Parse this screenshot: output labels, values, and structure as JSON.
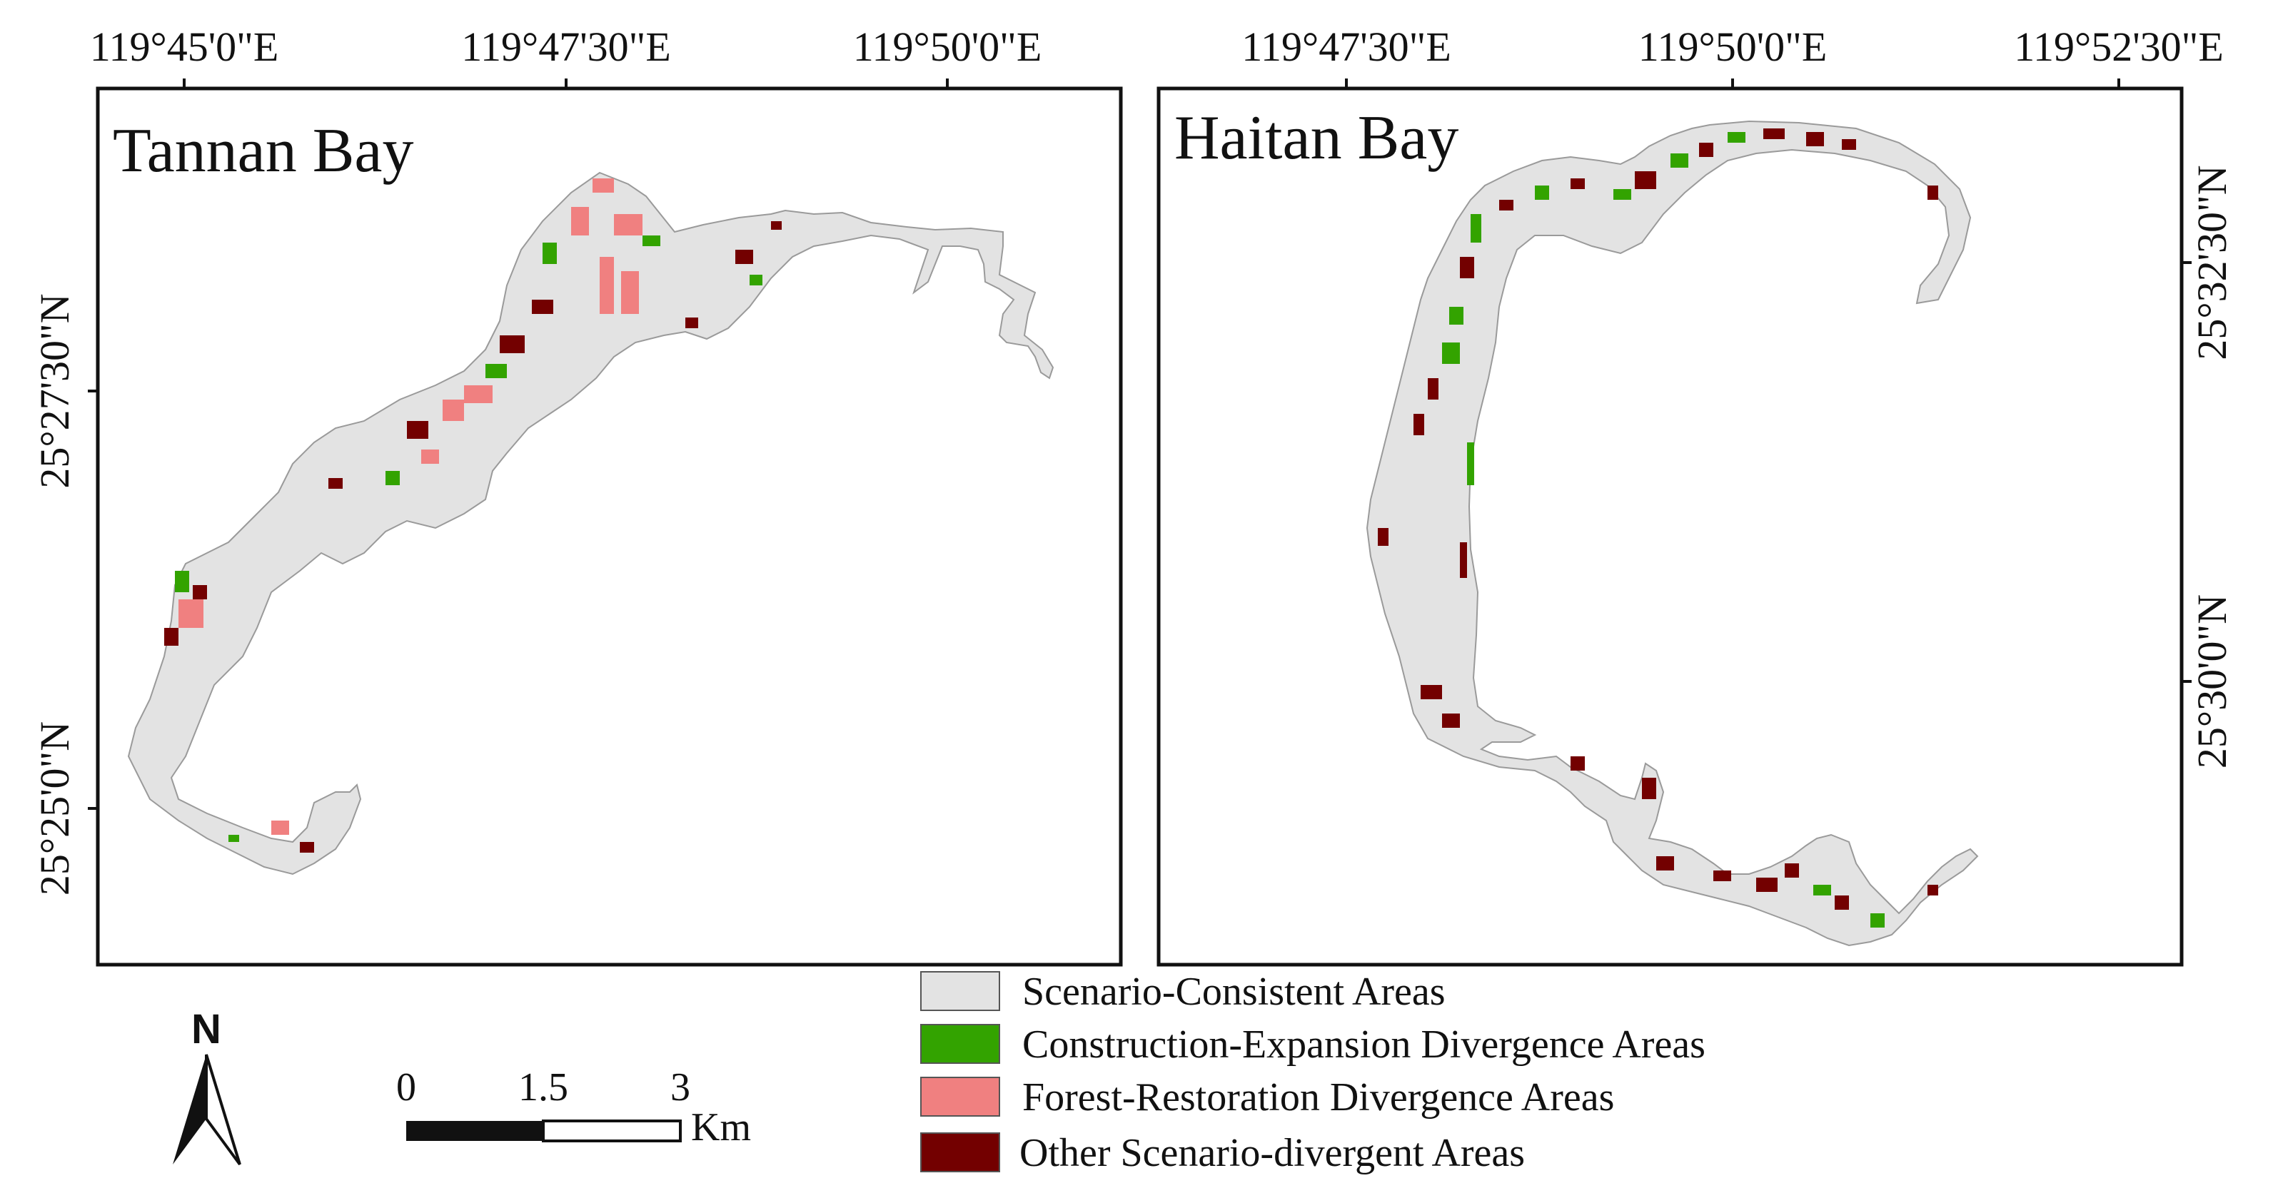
{
  "panels": [
    {
      "title": "Tannan Bay",
      "lon_labels": [
        "119°45'0\"E",
        "119°47'30\"E",
        "119°50'0\"E"
      ],
      "lat_labels": [
        "25°27'30\"N",
        "25°25'0\"N"
      ]
    },
    {
      "title": "Haitan Bay",
      "lon_labels": [
        "119°47'30\"E",
        "119°50'0\"E",
        "119°52'30\"E"
      ],
      "lat_labels": [
        "25°32'30\"N",
        "25°30'0\"N"
      ]
    }
  ],
  "legend": {
    "items": [
      {
        "label": "Scenario-Consistent Areas",
        "color": "#e3e3e3"
      },
      {
        "label": "Construction-Expansion Divergence Areas",
        "color": "#33a300"
      },
      {
        "label": "Forest-Restoration Divergence Areas",
        "color": "#f08080"
      },
      {
        "label": "Other Scenario-divergent Areas",
        "color": "#730000"
      }
    ]
  },
  "scale_bar": {
    "ticks": [
      "0",
      "1.5",
      "3"
    ],
    "unit": "Km"
  },
  "north_arrow": {
    "label": "N",
    "icon": "north-arrow-icon"
  }
}
